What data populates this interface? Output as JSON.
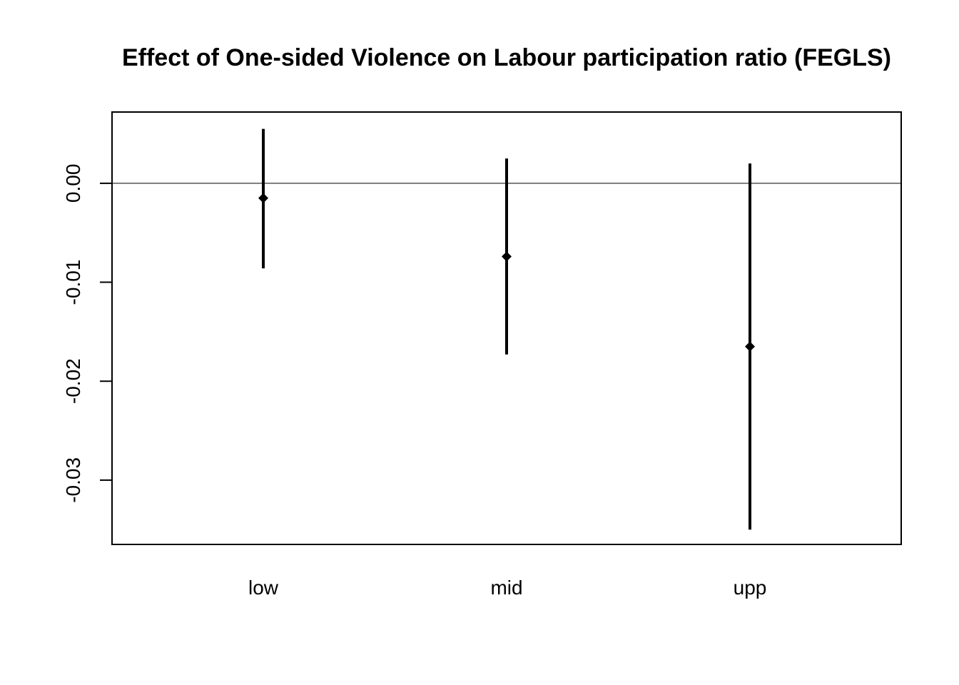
{
  "chart_data": {
    "type": "errorbar",
    "title": "Effect of One-sided Violence on Labour participation ratio (FEGLS)",
    "xlabel": "",
    "ylabel": "",
    "categories": [
      "low",
      "mid",
      "upp"
    ],
    "estimates": [
      -0.0015,
      -0.0074,
      -0.0165
    ],
    "lower": [
      -0.0086,
      -0.0173,
      -0.035
    ],
    "upper": [
      0.0055,
      0.0025,
      0.002
    ],
    "ylim": [
      -0.0365,
      0.0072
    ],
    "yticks": [
      0.0,
      -0.01,
      -0.02,
      -0.03
    ],
    "ytick_labels": [
      "0.00",
      "-0.01",
      "-0.02",
      "-0.03"
    ],
    "reference_line": 0,
    "grid": false,
    "colors": {
      "marks": "#000000",
      "axis": "#000000"
    }
  }
}
